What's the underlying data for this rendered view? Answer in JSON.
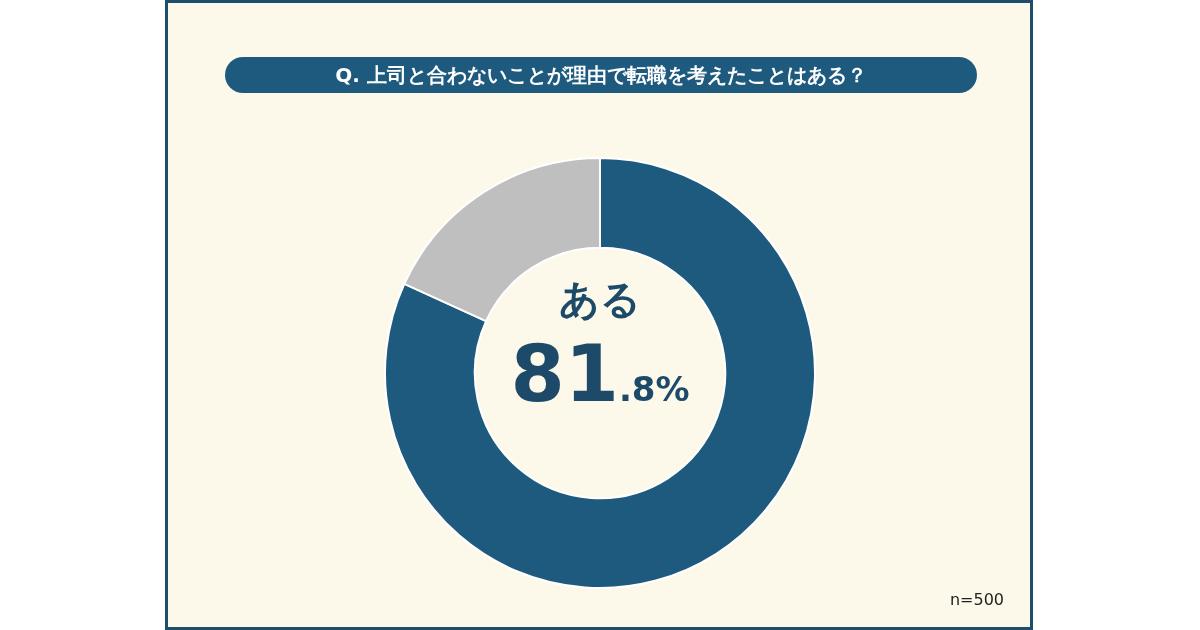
{
  "chart_data": {
    "type": "donut",
    "title": "Q. 上司と合わないことが理由で転職を考えたことはある？",
    "categories": [
      "ある",
      null
    ],
    "values": [
      81.8,
      18.2
    ],
    "colors": [
      "#1d5a7e",
      "#bfbfbf"
    ],
    "value_labels": [
      "81.8%",
      null
    ],
    "legend": false,
    "annotations": [
      "n=500"
    ]
  }
}
